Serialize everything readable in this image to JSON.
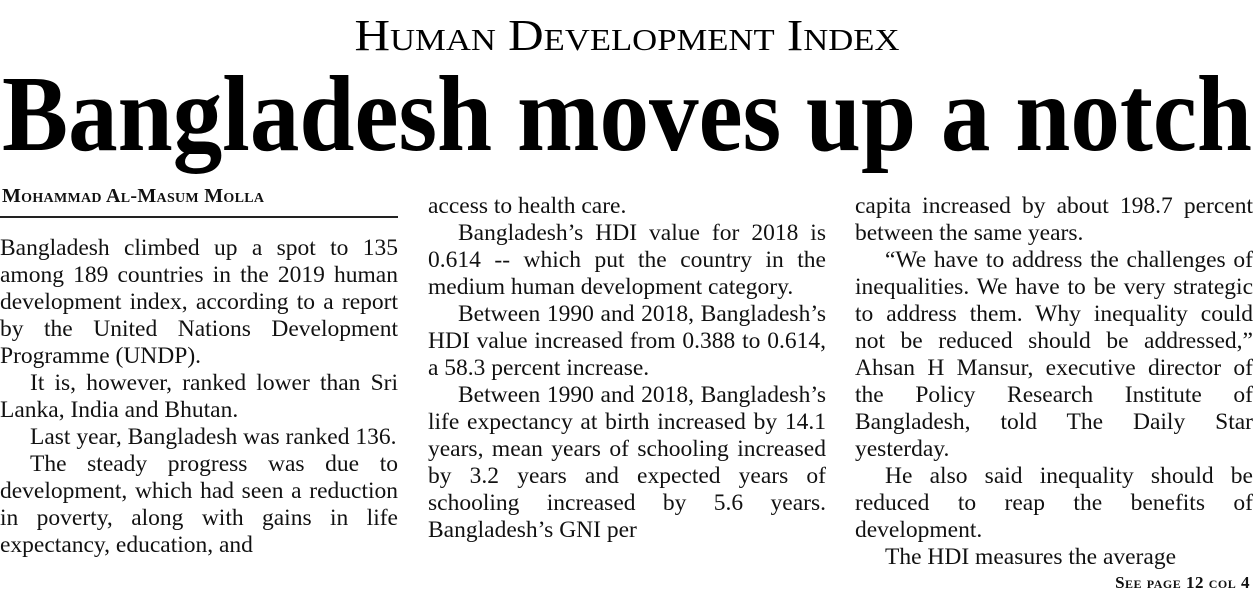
{
  "kicker": "Human Development Index",
  "headline": "Bangladesh moves up a notch",
  "byline": "Mohammad Al-Masum Molla",
  "columns": [
    {
      "paragraphs": [
        "Bangladesh climbed up a spot to 135 among 189 countries in the 2019 human development index, according to a report by the United Nations Development Programme (UNDP).",
        "It is, however, ranked lower than Sri Lanka, India and Bhutan.",
        "Last year, Bangladesh was ranked 136.",
        "The steady progress was due to development, which had seen a reduction in poverty, along with gains in life expectancy, education, and"
      ]
    },
    {
      "paragraphs": [
        "access to health care.",
        "Bangladesh’s HDI value for 2018 is 0.614 -- which put the country in the medium human development category.",
        "Between 1990 and 2018, Bangladesh’s HDI value increased from 0.388 to 0.614, a 58.3 percent increase.",
        "Between 1990 and 2018, Bangladesh’s life expectancy at birth increased by 14.1 years, mean years of schooling increased by 3.2 years and expected years of schooling increased by 5.6 years. Bangladesh’s GNI per"
      ]
    },
    {
      "paragraphs": [
        "capita increased by about 198.7 percent between the same years.",
        "“We have to address the challenges of inequalities. We have to be very strategic to address them. Why inequality could not be reduced should be addressed,” Ahsan H Mansur, executive director of the Policy Research Institute of Bangladesh, told The Daily Star yesterday.",
        "He also said inequality should be reduced to reap the benefits of development.",
        "The HDI measures the average"
      ]
    }
  ],
  "jump": "See page 12 col 4"
}
